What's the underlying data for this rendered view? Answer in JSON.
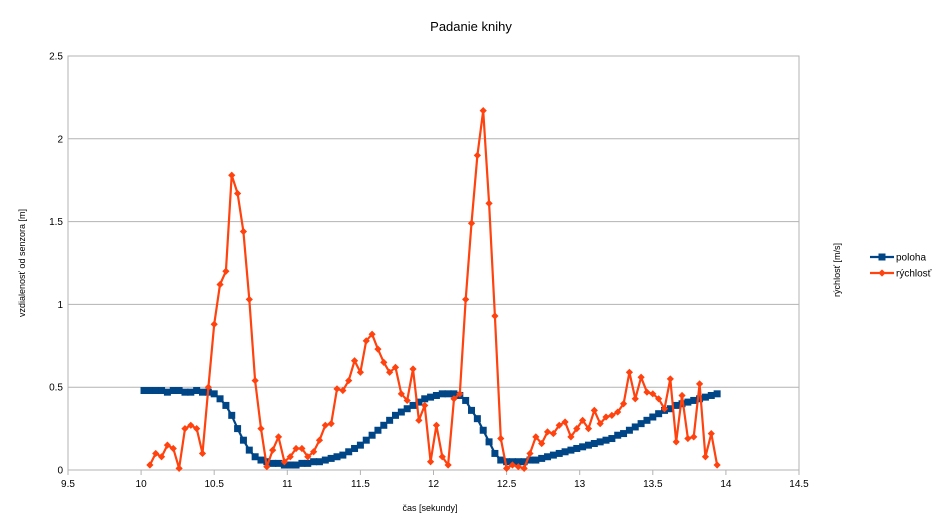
{
  "chart_data": {
    "type": "line",
    "title": "Padanie knihy",
    "xlabel": "čas [sekundy]",
    "ylabel": "vzdialenosť od senzora [m]",
    "y2label": "rýchlosť [m/s]",
    "xlim": [
      9.5,
      14.5
    ],
    "ylim": [
      0,
      2.5
    ],
    "xticks": [
      "9.5",
      "10",
      "10.5",
      "11",
      "11.5",
      "12",
      "12.5",
      "13",
      "13.5",
      "14",
      "14.5"
    ],
    "yticks": [
      "0",
      "0.5",
      "1",
      "1.5",
      "2",
      "2.5"
    ],
    "grid": true,
    "legend_position": "right",
    "series": [
      {
        "name": "poloha",
        "color": "#004586",
        "marker": "square",
        "x": [
          10.02,
          10.06,
          10.1,
          10.14,
          10.18,
          10.22,
          10.26,
          10.3,
          10.34,
          10.38,
          10.42,
          10.46,
          10.5,
          10.54,
          10.58,
          10.62,
          10.66,
          10.7,
          10.74,
          10.78,
          10.82,
          10.86,
          10.9,
          10.94,
          10.98,
          11.02,
          11.06,
          11.1,
          11.14,
          11.18,
          11.22,
          11.26,
          11.3,
          11.34,
          11.38,
          11.42,
          11.46,
          11.5,
          11.54,
          11.58,
          11.62,
          11.66,
          11.7,
          11.74,
          11.78,
          11.82,
          11.86,
          11.9,
          11.94,
          11.98,
          12.02,
          12.06,
          12.1,
          12.14,
          12.18,
          12.22,
          12.26,
          12.3,
          12.34,
          12.38,
          12.42,
          12.46,
          12.5,
          12.54,
          12.58,
          12.62,
          12.66,
          12.7,
          12.74,
          12.78,
          12.82,
          12.86,
          12.9,
          12.94,
          12.98,
          13.02,
          13.06,
          13.1,
          13.14,
          13.18,
          13.22,
          13.26,
          13.3,
          13.34,
          13.38,
          13.42,
          13.46,
          13.5,
          13.54,
          13.58,
          13.62,
          13.66,
          13.7,
          13.74,
          13.78,
          13.82,
          13.86,
          13.9,
          13.94
        ],
        "y": [
          0.48,
          0.48,
          0.48,
          0.48,
          0.47,
          0.48,
          0.48,
          0.47,
          0.47,
          0.48,
          0.47,
          0.47,
          0.46,
          0.43,
          0.39,
          0.33,
          0.25,
          0.18,
          0.12,
          0.08,
          0.06,
          0.05,
          0.04,
          0.04,
          0.03,
          0.03,
          0.03,
          0.04,
          0.04,
          0.05,
          0.05,
          0.06,
          0.07,
          0.08,
          0.09,
          0.11,
          0.13,
          0.15,
          0.18,
          0.21,
          0.24,
          0.27,
          0.3,
          0.33,
          0.35,
          0.37,
          0.39,
          0.41,
          0.43,
          0.44,
          0.45,
          0.46,
          0.46,
          0.46,
          0.45,
          0.42,
          0.36,
          0.31,
          0.24,
          0.17,
          0.1,
          0.06,
          0.05,
          0.05,
          0.05,
          0.05,
          0.06,
          0.06,
          0.07,
          0.08,
          0.09,
          0.1,
          0.11,
          0.12,
          0.13,
          0.14,
          0.15,
          0.16,
          0.17,
          0.18,
          0.19,
          0.21,
          0.22,
          0.24,
          0.26,
          0.28,
          0.3,
          0.32,
          0.34,
          0.36,
          0.37,
          0.39,
          0.4,
          0.41,
          0.42,
          0.43,
          0.44,
          0.45,
          0.46
        ]
      },
      {
        "name": "rýchlosť",
        "color": "#ff420e",
        "marker": "diamond",
        "x": [
          10.06,
          10.1,
          10.14,
          10.18,
          10.22,
          10.26,
          10.3,
          10.34,
          10.38,
          10.42,
          10.46,
          10.5,
          10.54,
          10.58,
          10.62,
          10.66,
          10.7,
          10.74,
          10.78,
          10.82,
          10.86,
          10.9,
          10.94,
          10.98,
          11.02,
          11.06,
          11.1,
          11.14,
          11.18,
          11.22,
          11.26,
          11.3,
          11.34,
          11.38,
          11.42,
          11.46,
          11.5,
          11.54,
          11.58,
          11.62,
          11.66,
          11.7,
          11.74,
          11.78,
          11.82,
          11.86,
          11.9,
          11.94,
          11.98,
          12.02,
          12.06,
          12.1,
          12.14,
          12.18,
          12.22,
          12.26,
          12.3,
          12.34,
          12.38,
          12.42,
          12.46,
          12.5,
          12.54,
          12.58,
          12.62,
          12.66,
          12.7,
          12.74,
          12.78,
          12.82,
          12.86,
          12.9,
          12.94,
          12.98,
          13.02,
          13.06,
          13.1,
          13.14,
          13.18,
          13.22,
          13.26,
          13.3,
          13.34,
          13.38,
          13.42,
          13.46,
          13.5,
          13.54,
          13.58,
          13.62,
          13.66,
          13.7,
          13.74,
          13.78,
          13.82,
          13.86,
          13.9,
          13.94
        ],
        "y": [
          0.03,
          0.1,
          0.08,
          0.15,
          0.13,
          0.01,
          0.25,
          0.27,
          0.25,
          0.1,
          0.5,
          0.88,
          1.12,
          1.2,
          1.78,
          1.67,
          1.44,
          1.03,
          0.54,
          0.25,
          0.02,
          0.12,
          0.2,
          0.05,
          0.08,
          0.13,
          0.13,
          0.08,
          0.11,
          0.18,
          0.27,
          0.28,
          0.49,
          0.48,
          0.54,
          0.66,
          0.59,
          0.78,
          0.82,
          0.73,
          0.65,
          0.59,
          0.62,
          0.46,
          0.42,
          0.61,
          0.3,
          0.39,
          0.05,
          0.27,
          0.08,
          0.03,
          0.43,
          0.46,
          1.03,
          1.49,
          1.9,
          2.17,
          1.61,
          0.93,
          0.19,
          0.01,
          0.03,
          0.02,
          0.01,
          0.1,
          0.2,
          0.16,
          0.23,
          0.22,
          0.27,
          0.29,
          0.2,
          0.25,
          0.3,
          0.25,
          0.36,
          0.28,
          0.32,
          0.33,
          0.35,
          0.4,
          0.59,
          0.43,
          0.56,
          0.47,
          0.46,
          0.43,
          0.37,
          0.55,
          0.17,
          0.45,
          0.19,
          0.2,
          0.52,
          0.08,
          0.22,
          0.03
        ]
      }
    ]
  }
}
